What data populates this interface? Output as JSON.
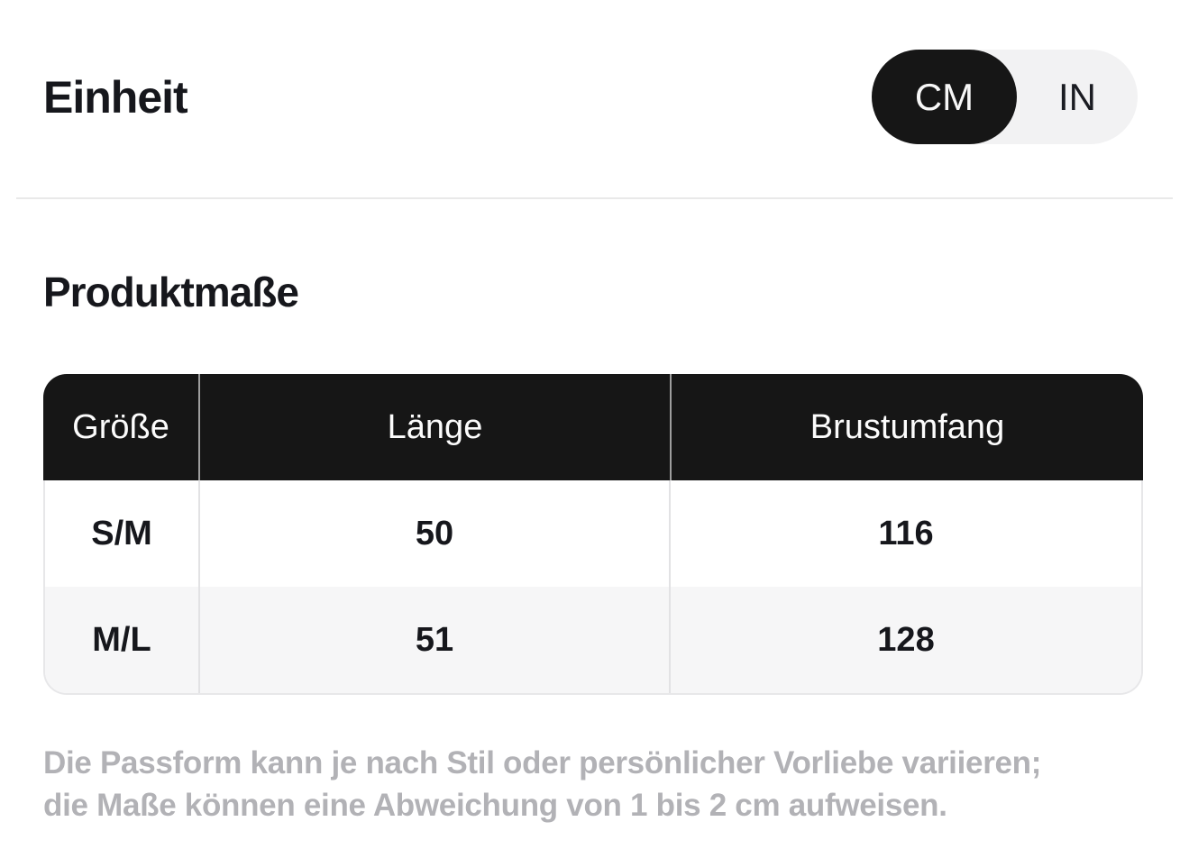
{
  "unit_section": {
    "label": "Einheit",
    "toggle": {
      "options": [
        {
          "label": "CM",
          "selected": true
        },
        {
          "label": "IN",
          "selected": false
        }
      ]
    }
  },
  "measurements": {
    "title": "Produktmaße",
    "table": {
      "header": [
        "Größe",
        "Länge",
        "Brustumfang"
      ],
      "rows": [
        [
          "S/M",
          "50",
          "116"
        ],
        [
          "M/L",
          "51",
          "128"
        ]
      ]
    },
    "note_lines": [
      "Die Passform kann je nach Stil oder persönlicher Vorliebe variieren;",
      "die Maße können eine Abweichung von 1 bis 2 cm aufweisen."
    ]
  },
  "colors": {
    "selected_pill_bg": "#161616",
    "toggle_track_bg": "#f2f2f3",
    "table_header_bg": "#161616",
    "alt_row_bg": "#f6f6f7",
    "border": "#e7e7e9",
    "text_primary": "#16171c",
    "text_note": "#b2b2b6"
  }
}
